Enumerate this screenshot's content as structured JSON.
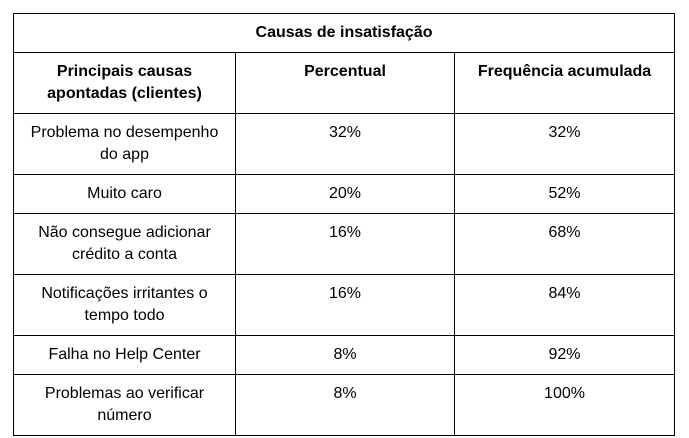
{
  "table": {
    "title": "Causas de insatisfação",
    "headers": [
      "Principais causas apontadas (clientes)",
      "Percentual",
      "Frequência acumulada"
    ],
    "rows": [
      [
        "Problema no desempenho do app",
        "32%",
        "32%"
      ],
      [
        "Muito caro",
        "20%",
        "52%"
      ],
      [
        "Não consegue adicionar crédito a conta",
        "16%",
        "68%"
      ],
      [
        "Notificações irritantes o tempo todo",
        "16%",
        "84%"
      ],
      [
        "Falha no Help Center",
        "8%",
        "92%"
      ],
      [
        "Problemas ao verificar número",
        "8%",
        "100%"
      ]
    ]
  }
}
